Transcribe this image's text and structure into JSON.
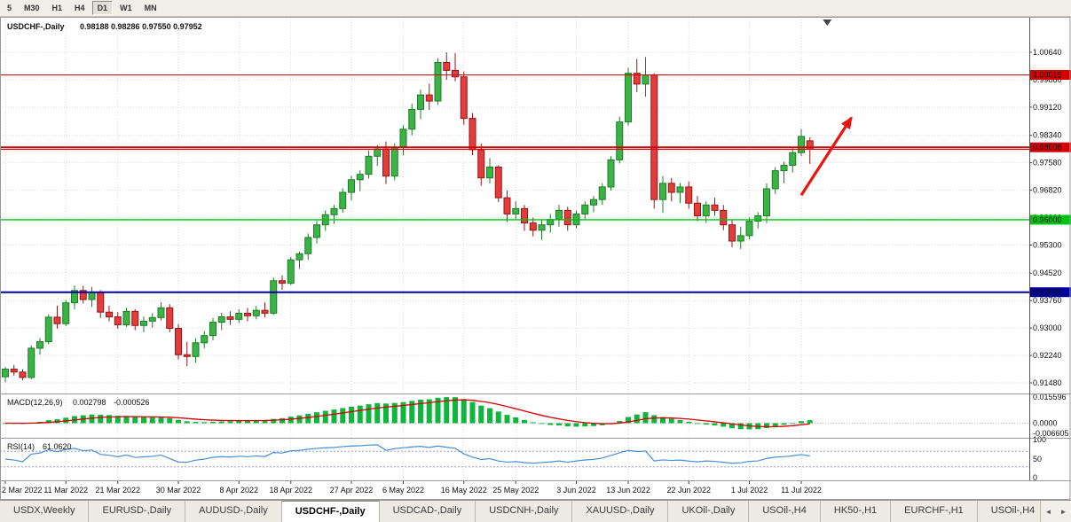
{
  "toolbar": {
    "periods": [
      {
        "label": "5",
        "active": false
      },
      {
        "label": "M30",
        "active": false
      },
      {
        "label": "H1",
        "active": false
      },
      {
        "label": "H4",
        "active": false
      },
      {
        "label": "D1",
        "active": true
      },
      {
        "label": "W1",
        "active": false
      },
      {
        "label": "MN",
        "active": false
      }
    ]
  },
  "chart": {
    "title": "USDCHF-,Daily",
    "ohlc": "0.98188 0.98286 0.97550 0.97952",
    "bid": "0.97952"
  },
  "macd": {
    "name": "MACD(12,26,9)",
    "value_main": "0.002798",
    "value_signal": "-0.000526",
    "axis_labels": [
      "0.015596",
      "0.0000",
      "-0.006605"
    ]
  },
  "rsi": {
    "name": "RSI(14)",
    "value": "61.0620",
    "axis_labels": [
      "100",
      "50",
      "0"
    ],
    "levels": [
      70,
      30
    ]
  },
  "tabs": {
    "items": [
      {
        "label": "USDX,Weekly",
        "active": false
      },
      {
        "label": "EURUSD-,Daily",
        "active": false
      },
      {
        "label": "AUDUSD-,Daily",
        "active": false
      },
      {
        "label": "USDCHF-,Daily",
        "active": true
      },
      {
        "label": "USDCAD-,Daily",
        "active": false
      },
      {
        "label": "USDCNH-,Daily",
        "active": false
      },
      {
        "label": "XAUUSD-,Daily",
        "active": false
      },
      {
        "label": "UKOil-,Daily",
        "active": false
      },
      {
        "label": "USOil-,H4",
        "active": false
      },
      {
        "label": "HK50-,H1",
        "active": false
      },
      {
        "label": "EURCHF-,H1",
        "active": false
      },
      {
        "label": "USOil-,H4",
        "active": false
      }
    ],
    "scroll_left": "◄",
    "scroll_right": "►"
  },
  "colors": {
    "up_fill": "#3cb347",
    "up_stroke": "#1d7d27",
    "down_fill": "#e33c3c",
    "down_stroke": "#971515",
    "grid": "#dadada",
    "macd_bar": "#0fb53c",
    "macd_signal": "#d40000",
    "rsi_line": "#4a8fd4",
    "rsi_level": "#9aa0cc",
    "hline_red": "#d40000"
  },
  "chart_data": {
    "type": "candlestick",
    "symbol": "USDCHF",
    "timeframe": "Daily",
    "ylim": [
      0.9121,
      1.0155
    ],
    "y_ticks": [
      "1.00640",
      "0.99880",
      "0.99120",
      "0.98340",
      "0.97580",
      "0.96820",
      "0.96060",
      "0.95300",
      "0.94520",
      "0.93760",
      "0.93000",
      "0.92240",
      "0.91480"
    ],
    "x_labels": [
      "2 Mar 2022",
      "11 Mar 2022",
      "21 Mar 2022",
      "30 Mar 2022",
      "8 Apr 2022",
      "18 Apr 2022",
      "27 Apr 2022",
      "6 May 2022",
      "16 May 2022",
      "25 May 2022",
      "3 Jun 2022",
      "13 Jun 2022",
      "22 Jun 2022",
      "1 Jul 2022",
      "11 Jul 2022"
    ],
    "x_label_indices": [
      0,
      7,
      13,
      20,
      27,
      33,
      40,
      46,
      53,
      59,
      66,
      72,
      79,
      86,
      92
    ],
    "hlines": [
      {
        "price": 1.00015,
        "label": "1.00015",
        "color": "#d40000",
        "text": "#ffffff",
        "width": 1
      },
      {
        "price": 0.98008,
        "label": "0.98008",
        "color": "#d40000",
        "text": "#ffffff",
        "width": 2
      },
      {
        "price": 0.96,
        "label": "0.96000",
        "color": "#00c214",
        "text": "#000000",
        "width": 1.4
      },
      {
        "price": 0.93993,
        "label": "0.93993",
        "color": "#0000a0",
        "text": "#ffffff",
        "width": 2
      }
    ],
    "arrow": {
      "from": {
        "index": 92.0,
        "price": 0.9668
      },
      "to": {
        "index": 98.0,
        "price": 0.989
      },
      "color": "#e8150c"
    },
    "shift_marker_index": 95,
    "candles": [
      [
        0.9165,
        0.9192,
        0.915,
        0.9186
      ],
      [
        0.9186,
        0.9198,
        0.9168,
        0.9178
      ],
      [
        0.9178,
        0.9186,
        0.9155,
        0.9163
      ],
      [
        0.9163,
        0.9252,
        0.9158,
        0.9244
      ],
      [
        0.9244,
        0.9272,
        0.9226,
        0.9262
      ],
      [
        0.9262,
        0.9338,
        0.9255,
        0.933
      ],
      [
        0.933,
        0.9362,
        0.9298,
        0.9312
      ],
      [
        0.9312,
        0.9378,
        0.9305,
        0.937
      ],
      [
        0.937,
        0.9418,
        0.9352,
        0.9404
      ],
      [
        0.9404,
        0.9417,
        0.9368,
        0.9379
      ],
      [
        0.9379,
        0.9414,
        0.9358,
        0.9399
      ],
      [
        0.9399,
        0.9405,
        0.9328,
        0.9344
      ],
      [
        0.9344,
        0.9362,
        0.9318,
        0.9331
      ],
      [
        0.9331,
        0.9344,
        0.9298,
        0.9309
      ],
      [
        0.9309,
        0.9356,
        0.9303,
        0.9346
      ],
      [
        0.9346,
        0.9352,
        0.9294,
        0.9307
      ],
      [
        0.9307,
        0.9332,
        0.9288,
        0.9319
      ],
      [
        0.9319,
        0.9341,
        0.9301,
        0.9329
      ],
      [
        0.9329,
        0.9372,
        0.9321,
        0.9356
      ],
      [
        0.9356,
        0.9366,
        0.9288,
        0.9299
      ],
      [
        0.9299,
        0.9311,
        0.9213,
        0.9226
      ],
      [
        0.9226,
        0.9262,
        0.9194,
        0.9221
      ],
      [
        0.9221,
        0.9272,
        0.9204,
        0.9259
      ],
      [
        0.9259,
        0.9292,
        0.9244,
        0.9279
      ],
      [
        0.9279,
        0.9328,
        0.9266,
        0.9316
      ],
      [
        0.9316,
        0.9342,
        0.9294,
        0.9331
      ],
      [
        0.9331,
        0.9346,
        0.9309,
        0.9324
      ],
      [
        0.9324,
        0.9352,
        0.9314,
        0.9341
      ],
      [
        0.9341,
        0.9356,
        0.9319,
        0.9334
      ],
      [
        0.9334,
        0.9361,
        0.9324,
        0.9349
      ],
      [
        0.9349,
        0.9371,
        0.9329,
        0.9341
      ],
      [
        0.9341,
        0.944,
        0.9336,
        0.9431
      ],
      [
        0.9431,
        0.9446,
        0.9406,
        0.9424
      ],
      [
        0.9424,
        0.9497,
        0.9419,
        0.9489
      ],
      [
        0.9489,
        0.9512,
        0.9464,
        0.9506
      ],
      [
        0.9506,
        0.9562,
        0.9489,
        0.9551
      ],
      [
        0.9551,
        0.9597,
        0.9534,
        0.9586
      ],
      [
        0.9586,
        0.9626,
        0.9569,
        0.9614
      ],
      [
        0.9614,
        0.9641,
        0.9589,
        0.9631
      ],
      [
        0.9631,
        0.9687,
        0.9619,
        0.9676
      ],
      [
        0.9676,
        0.9722,
        0.9654,
        0.9711
      ],
      [
        0.9711,
        0.9737,
        0.9679,
        0.9726
      ],
      [
        0.9726,
        0.9792,
        0.9714,
        0.9776
      ],
      [
        0.9776,
        0.9807,
        0.9749,
        0.9796
      ],
      [
        0.9796,
        0.9817,
        0.9699,
        0.9721
      ],
      [
        0.9721,
        0.9812,
        0.9709,
        0.9801
      ],
      [
        0.9801,
        0.9862,
        0.9779,
        0.9851
      ],
      [
        0.9851,
        0.9922,
        0.9834,
        0.9906
      ],
      [
        0.9906,
        0.9961,
        0.9879,
        0.9946
      ],
      [
        0.9946,
        0.9977,
        0.9904,
        0.9929
      ],
      [
        0.9929,
        1.0048,
        0.9919,
        1.0036
      ],
      [
        1.0036,
        1.0064,
        0.9988,
        1.0014
      ],
      [
        1.0014,
        1.0062,
        0.9984,
        0.9996
      ],
      [
        0.9996,
        1.0011,
        0.9863,
        0.9881
      ],
      [
        0.9881,
        0.9896,
        0.9779,
        0.9794
      ],
      [
        0.9794,
        0.9811,
        0.9694,
        0.9716
      ],
      [
        0.9716,
        0.9771,
        0.9701,
        0.9746
      ],
      [
        0.9746,
        0.9751,
        0.9649,
        0.9661
      ],
      [
        0.9661,
        0.9681,
        0.9594,
        0.9616
      ],
      [
        0.9616,
        0.9651,
        0.9601,
        0.9631
      ],
      [
        0.9631,
        0.9641,
        0.9569,
        0.9591
      ],
      [
        0.9591,
        0.9606,
        0.9554,
        0.9571
      ],
      [
        0.9571,
        0.9601,
        0.9544,
        0.9586
      ],
      [
        0.9586,
        0.9616,
        0.9564,
        0.9601
      ],
      [
        0.9601,
        0.9641,
        0.9581,
        0.9626
      ],
      [
        0.9626,
        0.9636,
        0.9569,
        0.9586
      ],
      [
        0.9586,
        0.9626,
        0.9576,
        0.9616
      ],
      [
        0.9616,
        0.9651,
        0.9601,
        0.9641
      ],
      [
        0.9641,
        0.9666,
        0.9621,
        0.9656
      ],
      [
        0.9656,
        0.9701,
        0.9641,
        0.9691
      ],
      [
        0.9691,
        0.9776,
        0.9681,
        0.9766
      ],
      [
        0.9766,
        0.9886,
        0.9756,
        0.9871
      ],
      [
        0.9871,
        1.0021,
        0.9861,
        1.0006
      ],
      [
        1.0006,
        1.0046,
        0.9954,
        0.9976
      ],
      [
        0.9976,
        1.0051,
        0.9941,
        1.0001
      ],
      [
        1.0001,
        1.0006,
        0.9631,
        0.9656
      ],
      [
        0.9656,
        0.9721,
        0.9619,
        0.9701
      ],
      [
        0.9701,
        0.9716,
        0.9651,
        0.9676
      ],
      [
        0.9676,
        0.9701,
        0.9646,
        0.9691
      ],
      [
        0.9691,
        0.9706,
        0.9631,
        0.9646
      ],
      [
        0.9646,
        0.9666,
        0.9596,
        0.9611
      ],
      [
        0.9611,
        0.9651,
        0.9591,
        0.9641
      ],
      [
        0.9641,
        0.9661,
        0.9611,
        0.9626
      ],
      [
        0.9626,
        0.9641,
        0.9571,
        0.9586
      ],
      [
        0.9586,
        0.9601,
        0.9524,
        0.9541
      ],
      [
        0.9541,
        0.9581,
        0.9519,
        0.9556
      ],
      [
        0.9556,
        0.9606,
        0.9546,
        0.9596
      ],
      [
        0.9596,
        0.9621,
        0.9576,
        0.9611
      ],
      [
        0.9611,
        0.9701,
        0.9591,
        0.9686
      ],
      [
        0.9686,
        0.9746,
        0.9671,
        0.9736
      ],
      [
        0.9736,
        0.9761,
        0.9701,
        0.9751
      ],
      [
        0.9751,
        0.9801,
        0.9731,
        0.9786
      ],
      [
        0.9786,
        0.9851,
        0.9776,
        0.9831
      ],
      [
        0.98188,
        0.98286,
        0.9755,
        0.97952
      ]
    ]
  }
}
